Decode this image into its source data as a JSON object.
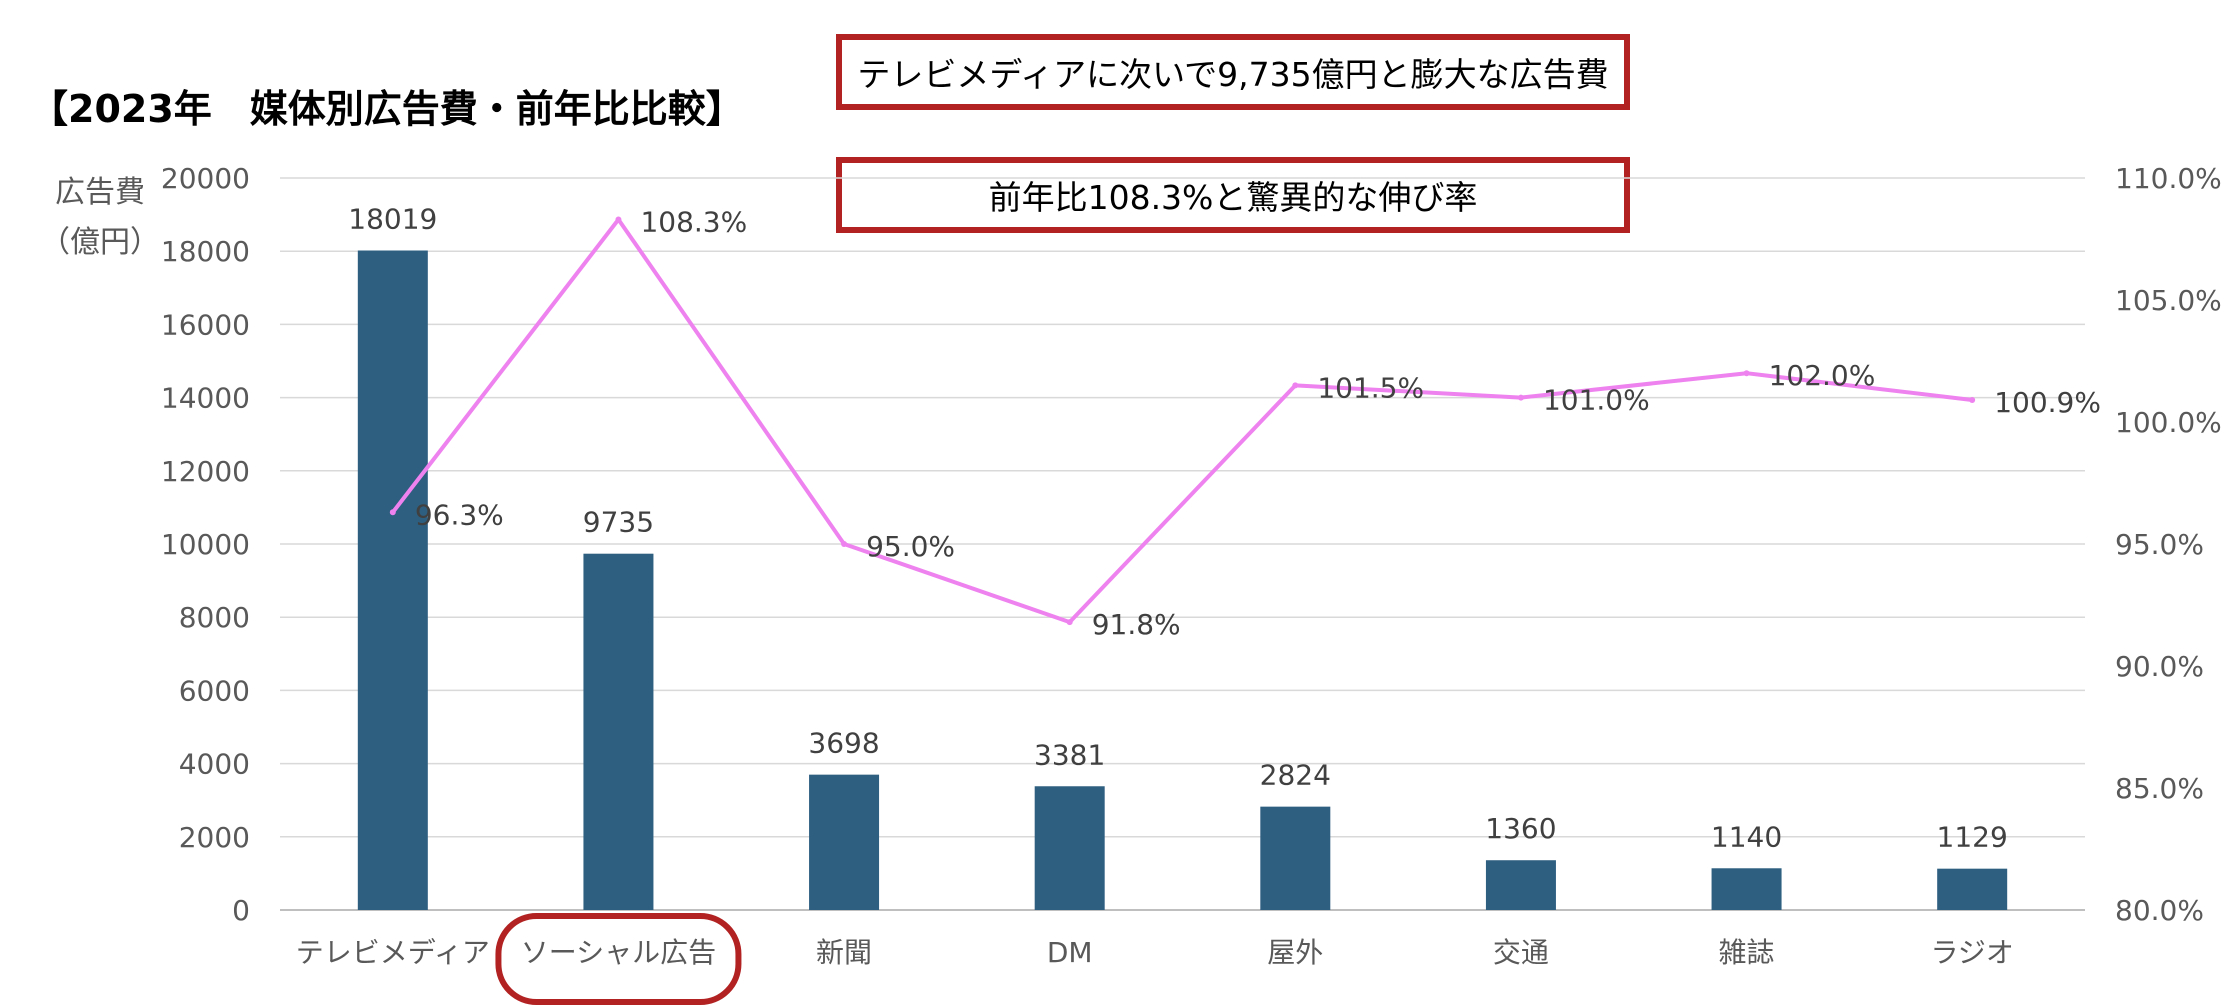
{
  "title": "【2023年　媒体別広告費・前年比比較】",
  "callouts": [
    "テレビメディアに次いで9,735億円と膨大な広告費",
    "前年比108.3%と驚異的な伸び率"
  ],
  "colors": {
    "bar": "#2e5f80",
    "line": "#ee82ee",
    "highlight": "#b22222",
    "grid": "#d9d9d9",
    "axis_text": "#595959"
  },
  "chart_data": {
    "type": "bar",
    "categories": [
      "テレビメディア",
      "ソーシャル広告",
      "新聞",
      "DM",
      "屋外",
      "交通",
      "雑誌",
      "ラジオ"
    ],
    "series": [
      {
        "name": "",
        "type": "bar",
        "axis": "left",
        "values": [
          18019,
          9735,
          3698,
          3381,
          2824,
          1360,
          1140,
          1129
        ],
        "labels": [
          "18019",
          "9735",
          "3698",
          "3381",
          "2824",
          "1360",
          "1140",
          "1129"
        ]
      },
      {
        "name": "",
        "type": "line",
        "axis": "right",
        "values": [
          96.3,
          108.3,
          95.0,
          91.8,
          101.5,
          101.0,
          102.0,
          100.9
        ],
        "labels": [
          "96.3%",
          "108.3%",
          "95.0%",
          "91.8%",
          "101.5%",
          "101.0%",
          "102.0%",
          "100.9%"
        ]
      }
    ],
    "ylabel_line1": "広告費",
    "ylabel_line2": "（億円）",
    "ylim": [
      0,
      20000
    ],
    "yticks": [
      "0",
      "2000",
      "4000",
      "6000",
      "8000",
      "10000",
      "12000",
      "14000",
      "16000",
      "18000",
      "20000"
    ],
    "y2lim": [
      80,
      110
    ],
    "y2ticks": [
      "80.0%",
      "85.0%",
      "90.0%",
      "95.0%",
      "100.0%",
      "105.0%",
      "110.0%"
    ],
    "grid": true,
    "legend": "none",
    "highlighted_category": "ソーシャル広告"
  }
}
